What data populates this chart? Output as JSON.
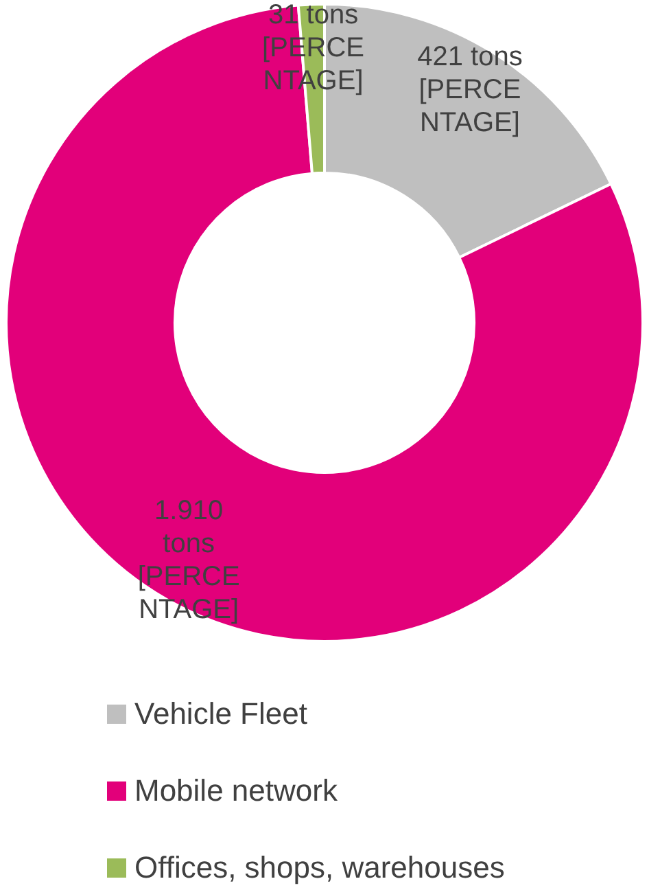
{
  "chart_data": {
    "type": "donut",
    "categories": [
      "Vehicle Fleet",
      "Mobile network",
      "Offices, shops, warehouses"
    ],
    "values": [
      421,
      1910,
      31
    ],
    "colors": [
      "#bfbfbf",
      "#e2007a",
      "#9bbb59"
    ],
    "value_labels": [
      "421 tons [PERCENTAGE]",
      "1.910 tons [PERCENTAGE]",
      "31 tons [PERCENTAGE]"
    ],
    "legend": "bottom"
  }
}
